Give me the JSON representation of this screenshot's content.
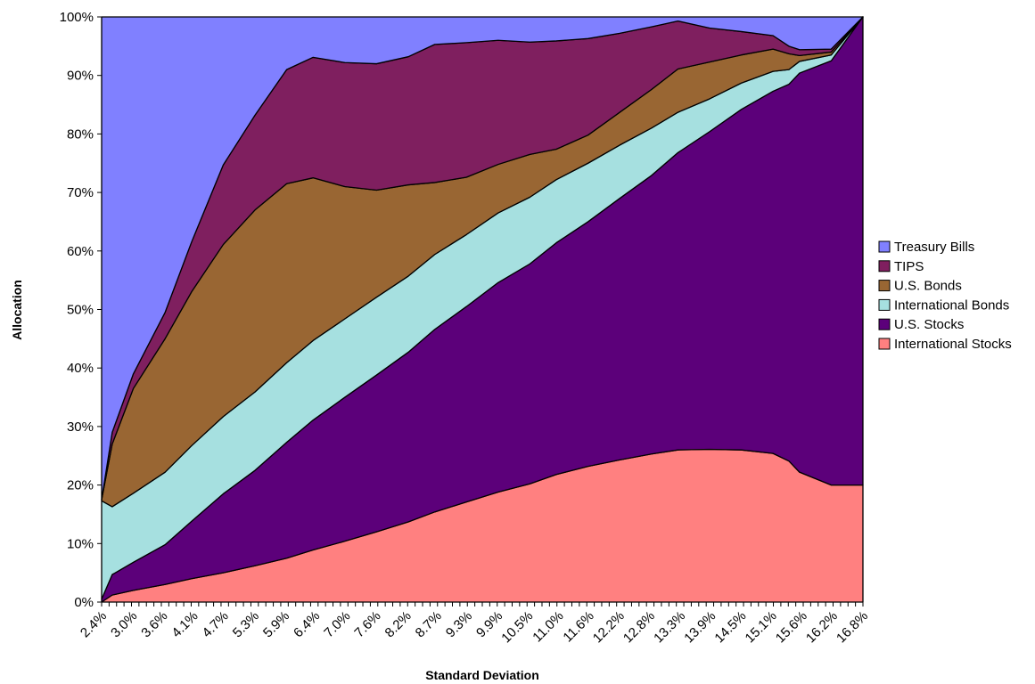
{
  "chart_data": {
    "type": "area",
    "stacked": "percent",
    "xlabel": "Standard Deviation",
    "ylabel": "Allocation",
    "ylim": [
      0,
      100
    ],
    "y_ticks": [
      "0%",
      "10%",
      "20%",
      "30%",
      "40%",
      "50%",
      "60%",
      "70%",
      "80%",
      "90%",
      "100%"
    ],
    "x_tick_labels": [
      "2.4%",
      "3.0%",
      "3.6%",
      "4.1%",
      "4.7%",
      "5.3%",
      "5.9%",
      "6.4%",
      "7.0%",
      "7.6%",
      "8.2%",
      "8.7%",
      "9.3%",
      "9.9%",
      "10.5%",
      "11.0%",
      "11.6%",
      "12.2%",
      "12.8%",
      "13.3%",
      "13.9%",
      "14.5%",
      "15.1%",
      "15.6%",
      "16.2%",
      "16.8%"
    ],
    "x": [
      2.4,
      2.6,
      3.0,
      3.6,
      4.1,
      4.7,
      5.3,
      5.9,
      6.4,
      7.0,
      7.6,
      8.2,
      8.7,
      9.3,
      9.9,
      10.5,
      11.0,
      11.6,
      12.2,
      12.8,
      13.3,
      13.9,
      14.5,
      15.1,
      15.4,
      15.6,
      16.2,
      16.8
    ],
    "series": [
      {
        "name": "International Stocks",
        "color": "#ff8080",
        "values": [
          0,
          1.2,
          2.0,
          3.0,
          4.0,
          5.0,
          6.2,
          7.5,
          8.9,
          10.4,
          12.0,
          13.7,
          15.4,
          17.1,
          18.8,
          20.2,
          21.8,
          23.2,
          24.3,
          25.3,
          26.0,
          26.1,
          26.0,
          25.4,
          24.1,
          22.2,
          20.0,
          20.0
        ]
      },
      {
        "name": "U.S. Stocks",
        "color": "#5c007a",
        "values": [
          0.5,
          3.5,
          4.8,
          6.8,
          9.8,
          13.5,
          16.3,
          19.8,
          22.2,
          24.6,
          26.8,
          29.0,
          31.2,
          33.4,
          35.8,
          37.6,
          39.6,
          41.8,
          44.7,
          47.6,
          50.8,
          54.3,
          58.2,
          61.9,
          64.4,
          68.2,
          72.5,
          80.0
        ]
      },
      {
        "name": "International Bonds",
        "color": "#a6e0e0",
        "values": [
          16.8,
          11.6,
          11.8,
          12.4,
          12.9,
          13.2,
          13.4,
          13.6,
          13.6,
          13.4,
          13.3,
          13.0,
          12.8,
          12.3,
          11.9,
          11.4,
          10.8,
          10.0,
          9.1,
          8.1,
          6.9,
          5.6,
          4.5,
          3.4,
          2.5,
          2.0,
          1.0,
          0
        ]
      },
      {
        "name": "U.S. Bonds",
        "color": "#996633",
        "values": [
          0.2,
          10.7,
          17.9,
          22.8,
          26.3,
          29.4,
          31.1,
          30.6,
          27.8,
          22.6,
          18.3,
          15.6,
          12.3,
          9.8,
          8.3,
          7.3,
          5.2,
          4.8,
          5.6,
          6.6,
          7.4,
          6.3,
          4.8,
          3.8,
          2.7,
          1.0,
          0.5,
          0
        ]
      },
      {
        "name": "TIPS",
        "color": "#7f1f5f",
        "values": [
          0,
          2.0,
          2.5,
          4.5,
          8.5,
          13.6,
          16.2,
          19.5,
          20.6,
          21.2,
          21.6,
          21.9,
          23.6,
          23.0,
          21.2,
          19.2,
          18.5,
          16.5,
          13.5,
          10.7,
          8.2,
          5.8,
          4.0,
          2.3,
          1.3,
          1.0,
          0.5,
          0
        ]
      },
      {
        "name": "Treasury Bills",
        "color": "#8080ff",
        "values": [
          82.5,
          71.0,
          61.0,
          50.5,
          38.5,
          25.3,
          16.8,
          9.0,
          6.9,
          7.8,
          8.0,
          6.8,
          4.7,
          4.4,
          4.0,
          4.3,
          4.1,
          3.7,
          2.8,
          1.7,
          0.7,
          1.9,
          2.5,
          3.2,
          5.0,
          5.6,
          5.5,
          0
        ]
      }
    ],
    "legend": {
      "position": "right",
      "order": [
        "Treasury Bills",
        "TIPS",
        "U.S. Bonds",
        "International Bonds",
        "U.S. Stocks",
        "International Stocks"
      ]
    },
    "grid": false
  }
}
